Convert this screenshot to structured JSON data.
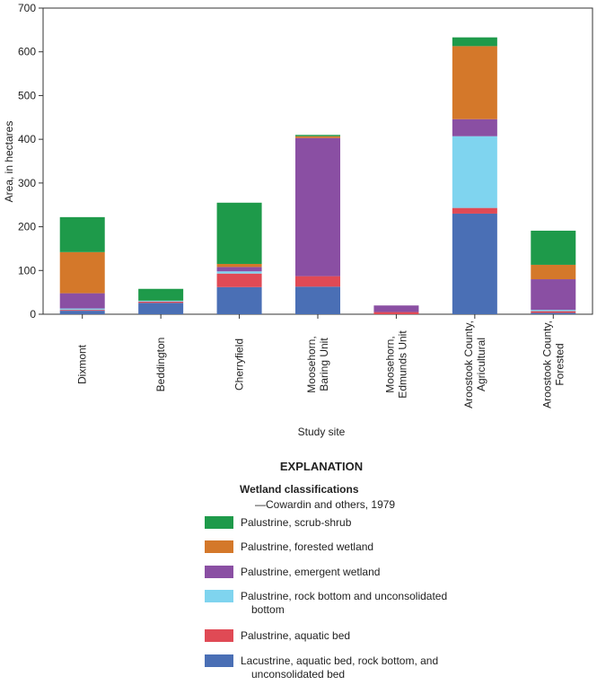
{
  "chart_data": {
    "type": "stacked_bar",
    "x_label": "Study site",
    "y_label": "Area, in hectares",
    "categories": [
      [
        "Dixmont"
      ],
      [
        "Beddington"
      ],
      [
        "Cherryfield"
      ],
      [
        "Moosehorn,",
        "Baring Unit"
      ],
      [
        "Moosehorn,",
        "Edmunds Unit"
      ],
      [
        "Aroostook County,",
        "Agricultural"
      ],
      [
        "Aroostook County,",
        "Forested"
      ]
    ],
    "ylim": [
      0,
      700
    ],
    "yticks": [
      0,
      100,
      200,
      300,
      400,
      500,
      600,
      700
    ],
    "legend_title": "EXPLANATION",
    "legend_subtitle": "Wetland classifications",
    "legend_note": "—Cowardin and others, 1979",
    "series": [
      {
        "name": "Lacustrine, aquatic bed, rock bottom, and unconsolidated bed",
        "color": "#4a6fb5",
        "values": [
          8,
          26,
          62,
          63,
          0,
          230,
          3
        ]
      },
      {
        "name": "Palustrine, aquatic bed",
        "color": "#e04a55",
        "values": [
          2,
          3,
          31,
          24,
          5,
          13,
          4
        ]
      },
      {
        "name": "Palustrine, rock bottom and unconsolidated bottom",
        "color": "#7fd4ef",
        "values": [
          3,
          2,
          5,
          0,
          0,
          164,
          3
        ]
      },
      {
        "name": "Palustrine, emergent wetland",
        "color": "#8a4fa3",
        "values": [
          35,
          0,
          10,
          316,
          15,
          39,
          70
        ]
      },
      {
        "name": "Palustrine, forested wetland",
        "color": "#d4782a",
        "values": [
          94,
          0,
          7,
          4,
          0,
          167,
          33
        ]
      },
      {
        "name": "Palustrine, scrub-shrub",
        "color": "#1e9a4a",
        "values": [
          80,
          27,
          140,
          3,
          0,
          20,
          78
        ]
      }
    ]
  }
}
